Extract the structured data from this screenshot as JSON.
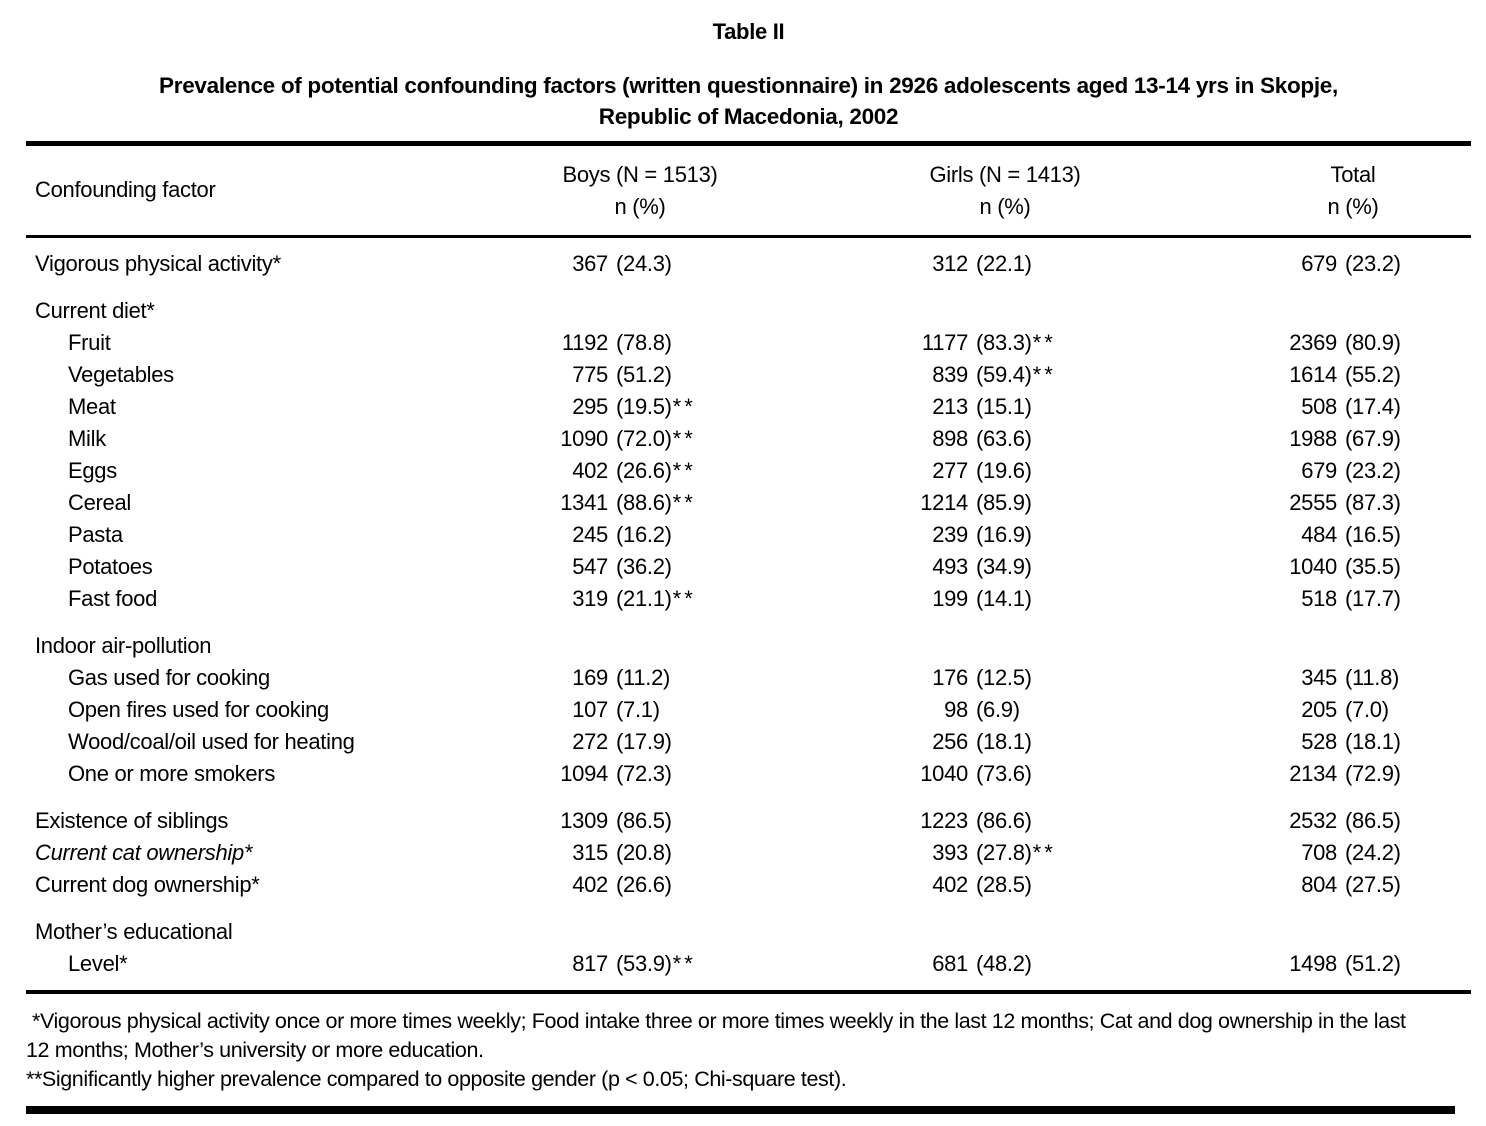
{
  "table_label": "Table II",
  "title_line1": "Prevalence of potential confounding factors (written questionnaire) in 2926 adolescents aged 13-14 yrs in Skopje,",
  "title_line2": "Republic of Macedonia, 2002",
  "header": {
    "factor_label": "Confounding factor",
    "columns": [
      {
        "label": "Boys (N = 1513)",
        "sub": "n (%)"
      },
      {
        "label": "Girls (N = 1413)",
        "sub": "n (%)"
      },
      {
        "label": "Total",
        "sub": "n (%)"
      }
    ]
  },
  "rows": [
    {
      "type": "data",
      "label": "Vigorous physical activity*",
      "indent": false,
      "italic": false,
      "gap": false,
      "boys": {
        "n": "367",
        "pct": "(24.3)",
        "sig": ""
      },
      "girls": {
        "n": "312",
        "pct": "(22.1)",
        "sig": ""
      },
      "total": {
        "n": "679",
        "pct": "(23.2)",
        "sig": ""
      }
    },
    {
      "type": "group",
      "label": "Current diet*",
      "indent": false,
      "italic": false,
      "gap": true
    },
    {
      "type": "data",
      "label": "Fruit",
      "indent": true,
      "italic": false,
      "gap": false,
      "boys": {
        "n": "1192",
        "pct": "(78.8)",
        "sig": ""
      },
      "girls": {
        "n": "1177",
        "pct": "(83.3)",
        "sig": "**"
      },
      "total": {
        "n": "2369",
        "pct": "(80.9)",
        "sig": ""
      }
    },
    {
      "type": "data",
      "label": "Vegetables",
      "indent": true,
      "italic": false,
      "gap": false,
      "boys": {
        "n": "775",
        "pct": "(51.2)",
        "sig": ""
      },
      "girls": {
        "n": "839",
        "pct": "(59.4)",
        "sig": "**"
      },
      "total": {
        "n": "1614",
        "pct": "(55.2)",
        "sig": ""
      }
    },
    {
      "type": "data",
      "label": "Meat",
      "indent": true,
      "italic": false,
      "gap": false,
      "boys": {
        "n": "295",
        "pct": "(19.5)",
        "sig": "**"
      },
      "girls": {
        "n": "213",
        "pct": "(15.1)",
        "sig": ""
      },
      "total": {
        "n": "508",
        "pct": "(17.4)",
        "sig": ""
      }
    },
    {
      "type": "data",
      "label": "Milk",
      "indent": true,
      "italic": false,
      "gap": false,
      "boys": {
        "n": "1090",
        "pct": "(72.0)",
        "sig": "**"
      },
      "girls": {
        "n": "898",
        "pct": "(63.6)",
        "sig": ""
      },
      "total": {
        "n": "1988",
        "pct": "(67.9)",
        "sig": ""
      }
    },
    {
      "type": "data",
      "label": "Eggs",
      "indent": true,
      "italic": false,
      "gap": false,
      "boys": {
        "n": "402",
        "pct": "(26.6)",
        "sig": "**"
      },
      "girls": {
        "n": "277",
        "pct": "(19.6)",
        "sig": ""
      },
      "total": {
        "n": "679",
        "pct": "(23.2)",
        "sig": ""
      }
    },
    {
      "type": "data",
      "label": "Cereal",
      "indent": true,
      "italic": false,
      "gap": false,
      "boys": {
        "n": "1341",
        "pct": "(88.6)",
        "sig": "**"
      },
      "girls": {
        "n": "1214",
        "pct": "(85.9)",
        "sig": ""
      },
      "total": {
        "n": "2555",
        "pct": "(87.3)",
        "sig": ""
      }
    },
    {
      "type": "data",
      "label": "Pasta",
      "indent": true,
      "italic": false,
      "gap": false,
      "boys": {
        "n": "245",
        "pct": "(16.2)",
        "sig": ""
      },
      "girls": {
        "n": "239",
        "pct": "(16.9)",
        "sig": ""
      },
      "total": {
        "n": "484",
        "pct": "(16.5)",
        "sig": ""
      }
    },
    {
      "type": "data",
      "label": "Potatoes",
      "indent": true,
      "italic": false,
      "gap": false,
      "boys": {
        "n": "547",
        "pct": "(36.2)",
        "sig": ""
      },
      "girls": {
        "n": "493",
        "pct": "(34.9)",
        "sig": ""
      },
      "total": {
        "n": "1040",
        "pct": "(35.5)",
        "sig": ""
      }
    },
    {
      "type": "data",
      "label": "Fast food",
      "indent": true,
      "italic": false,
      "gap": false,
      "boys": {
        "n": "319",
        "pct": "(21.1)",
        "sig": "**"
      },
      "girls": {
        "n": "199",
        "pct": "(14.1)",
        "sig": ""
      },
      "total": {
        "n": "518",
        "pct": "(17.7)",
        "sig": ""
      }
    },
    {
      "type": "group",
      "label": "Indoor air-pollution",
      "indent": false,
      "italic": false,
      "gap": true
    },
    {
      "type": "data",
      "label": "Gas used for cooking",
      "indent": true,
      "italic": false,
      "gap": false,
      "boys": {
        "n": "169",
        "pct": "(11.2)",
        "sig": ""
      },
      "girls": {
        "n": "176",
        "pct": "(12.5)",
        "sig": ""
      },
      "total": {
        "n": "345",
        "pct": "(11.8)",
        "sig": ""
      }
    },
    {
      "type": "data",
      "label": "Open fires used for cooking",
      "indent": true,
      "italic": false,
      "gap": false,
      "boys": {
        "n": "107",
        "pct": "(7.1)",
        "sig": ""
      },
      "girls": {
        "n": "98",
        "pct": "(6.9)",
        "sig": ""
      },
      "total": {
        "n": "205",
        "pct": "(7.0)",
        "sig": ""
      }
    },
    {
      "type": "data",
      "label": "Wood/coal/oil used for heating",
      "indent": true,
      "italic": false,
      "gap": false,
      "boys": {
        "n": "272",
        "pct": "(17.9)",
        "sig": ""
      },
      "girls": {
        "n": "256",
        "pct": "(18.1)",
        "sig": ""
      },
      "total": {
        "n": "528",
        "pct": "(18.1)",
        "sig": ""
      }
    },
    {
      "type": "data",
      "label": "One or more smokers",
      "indent": true,
      "italic": false,
      "gap": false,
      "boys": {
        "n": "1094",
        "pct": "(72.3)",
        "sig": ""
      },
      "girls": {
        "n": "1040",
        "pct": "(73.6)",
        "sig": ""
      },
      "total": {
        "n": "2134",
        "pct": "(72.9)",
        "sig": ""
      }
    },
    {
      "type": "data",
      "label": "Existence of siblings",
      "indent": false,
      "italic": false,
      "gap": true,
      "boys": {
        "n": "1309",
        "pct": "(86.5)",
        "sig": ""
      },
      "girls": {
        "n": "1223",
        "pct": "(86.6)",
        "sig": ""
      },
      "total": {
        "n": "2532",
        "pct": "(86.5)",
        "sig": ""
      }
    },
    {
      "type": "data",
      "label": "Current cat ownership*",
      "indent": false,
      "italic": true,
      "gap": false,
      "boys": {
        "n": "315",
        "pct": "(20.8)",
        "sig": ""
      },
      "girls": {
        "n": "393",
        "pct": "(27.8)",
        "sig": "**"
      },
      "total": {
        "n": "708",
        "pct": "(24.2)",
        "sig": ""
      }
    },
    {
      "type": "data",
      "label": "Current dog ownership*",
      "indent": false,
      "italic": false,
      "gap": false,
      "boys": {
        "n": "402",
        "pct": "(26.6)",
        "sig": ""
      },
      "girls": {
        "n": "402",
        "pct": "(28.5)",
        "sig": ""
      },
      "total": {
        "n": "804",
        "pct": "(27.5)",
        "sig": ""
      }
    },
    {
      "type": "group",
      "label": "Mother’s educational",
      "indent": false,
      "italic": false,
      "gap": true
    },
    {
      "type": "data",
      "label": "Level*",
      "indent": true,
      "italic": false,
      "gap": false,
      "boys": {
        "n": "817",
        "pct": "(53.9)",
        "sig": "**"
      },
      "girls": {
        "n": "681",
        "pct": "(48.2)",
        "sig": ""
      },
      "total": {
        "n": "1498",
        "pct": "(51.2)",
        "sig": ""
      }
    }
  ],
  "footnotes": {
    "note1_line1": "*Vigorous physical activity once or more times weekly; Food intake three or more times weekly in the last 12 months; Cat and dog ownership in the last",
    "note1_line2": "12 months; Mother’s university or more education.",
    "note2": "**Significantly higher prevalence compared to opposite gender (p < 0.05; Chi-square test)."
  }
}
